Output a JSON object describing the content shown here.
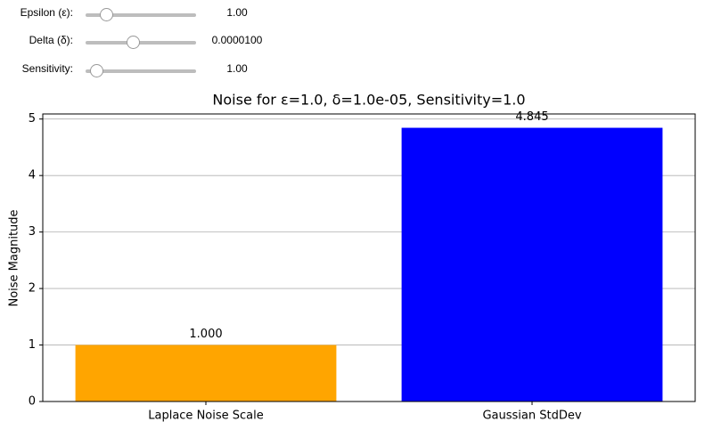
{
  "controls": [
    {
      "label": "Epsilon (ε):",
      "readout": "1.00"
    },
    {
      "label": "Delta (δ):",
      "readout": "0.0000100"
    },
    {
      "label": "Sensitivity:",
      "readout": "1.00"
    }
  ],
  "chart_data": {
    "type": "bar",
    "title": "Noise for ε=1.0, δ=1.0e-05, Sensitivity=1.0",
    "y_label": "Noise Magnitude",
    "categories": [
      "Laplace Noise Scale",
      "Gaussian StdDev"
    ],
    "values": [
      1.0,
      4.845
    ],
    "value_labels": [
      "1.000",
      "4.845"
    ],
    "colors": [
      "#ffa500",
      "#0000ff"
    ],
    "ylim": [
      0,
      5.09
    ],
    "yticks": [
      0,
      1,
      2,
      3,
      4,
      5
    ],
    "grid": true
  }
}
